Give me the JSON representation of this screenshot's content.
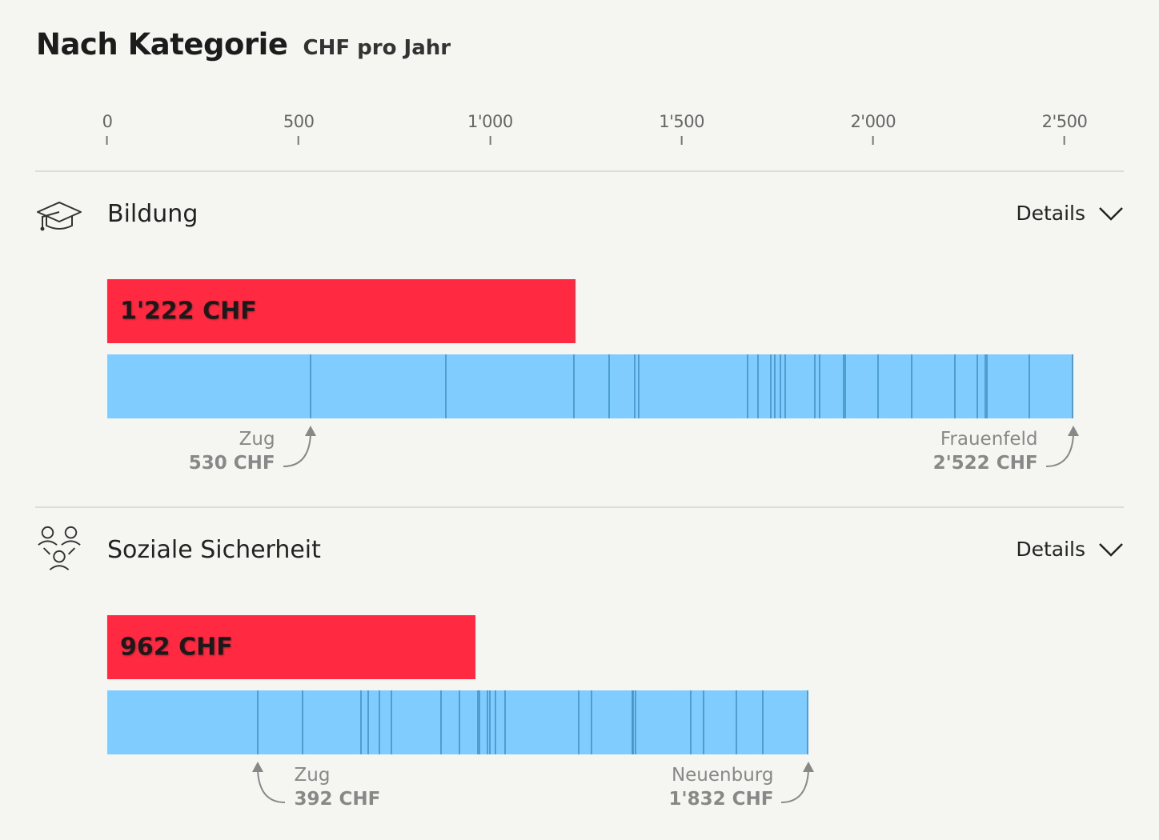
{
  "heading": {
    "title": "Nach Kategorie",
    "subtitle": "CHF pro Jahr"
  },
  "icons": {
    "details": "chevron-down-icon",
    "bildung": "graduation-cap-icon",
    "soziale_sicherheit": "people-group-icon"
  },
  "colors": {
    "user_bar": "#ff2a41",
    "range_bar": "#81ccff",
    "canton_line": "#3d8fc4",
    "annotation": "#888888",
    "background": "#f5f5f1"
  },
  "chart_data": {
    "type": "bar",
    "axis": {
      "min": 0,
      "max": 2500,
      "ticks": [
        0,
        500,
        1000,
        1500,
        2000,
        2500
      ],
      "tick_labels": [
        "0",
        "500",
        "1'000",
        "1'500",
        "2'000",
        "2'500"
      ],
      "position": "top"
    },
    "categories": [
      {
        "name": "Bildung",
        "details_label": "Details",
        "value": 1222,
        "value_label": "1'222 CHF",
        "range_min": 0,
        "range_max": 2522,
        "cantons": [
          530,
          884,
          1218,
          1310,
          1377,
          1389,
          1673,
          1700,
          1733,
          1743,
          1757,
          1771,
          1848,
          1860,
          1924,
          1927,
          2012,
          2100,
          2214,
          2273,
          2293,
          2298,
          2408,
          2522
        ],
        "min_annotation": {
          "city": "Zug",
          "value": "530 CHF"
        },
        "max_annotation": {
          "city": "Frauenfeld",
          "value": "2'522 CHF"
        }
      },
      {
        "name": "Soziale Sicherheit",
        "details_label": "Details",
        "value": 962,
        "value_label": "962 CHF",
        "range_min": 0,
        "range_max": 1832,
        "cantons": [
          392,
          511,
          662,
          682,
          710,
          742,
          871,
          920,
          967,
          971,
          992,
          1000,
          1014,
          1038,
          1231,
          1264,
          1371,
          1374,
          1380,
          1524,
          1557,
          1643,
          1713,
          1832
        ],
        "min_annotation": {
          "city": "Zug",
          "value": "392 CHF"
        },
        "max_annotation": {
          "city": "Neuenburg",
          "value": "1'832 CHF"
        }
      }
    ]
  }
}
